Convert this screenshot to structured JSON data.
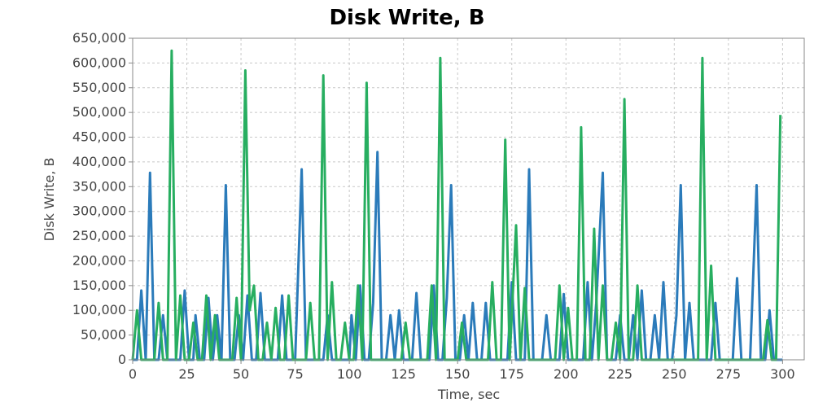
{
  "chart_data": {
    "type": "line",
    "title": "Disk Write, B",
    "xlabel": "Time, sec",
    "ylabel": "Disk Write, B",
    "xlim": [
      0,
      310
    ],
    "ylim": [
      0,
      650000
    ],
    "x_ticks": [
      0,
      25,
      50,
      75,
      100,
      125,
      150,
      175,
      200,
      225,
      250,
      275,
      300
    ],
    "y_ticks": [
      0,
      50000,
      100000,
      150000,
      200000,
      250000,
      300000,
      350000,
      400000,
      450000,
      500000,
      550000,
      600000,
      650000
    ],
    "x_tick_labels": [
      "0",
      "25",
      "50",
      "75",
      "100",
      "125",
      "150",
      "175",
      "200",
      "225",
      "250",
      "275",
      "300"
    ],
    "y_tick_labels": [
      "0",
      "50,000",
      "100,000",
      "150,000",
      "200,000",
      "250,000",
      "300,000",
      "350,000",
      "400,000",
      "450,000",
      "500,000",
      "550,000",
      "600,000",
      "650,000"
    ],
    "grid": true,
    "colors": {
      "series_blue": "#2b7bba",
      "series_green": "#27ae60"
    },
    "series": [
      {
        "color": "#2b7bba",
        "points": [
          [
            0,
            0
          ],
          [
            2,
            0
          ],
          [
            4,
            140000
          ],
          [
            6,
            0
          ],
          [
            8,
            378000
          ],
          [
            10,
            0
          ],
          [
            12,
            0
          ],
          [
            14,
            90000
          ],
          [
            16,
            0
          ],
          [
            18,
            0
          ],
          [
            20,
            0
          ],
          [
            22,
            0
          ],
          [
            24,
            140000
          ],
          [
            26,
            0
          ],
          [
            28,
            0
          ],
          [
            29,
            90000
          ],
          [
            31,
            0
          ],
          [
            33,
            0
          ],
          [
            35,
            125000
          ],
          [
            37,
            0
          ],
          [
            39,
            90000
          ],
          [
            41,
            0
          ],
          [
            43,
            353000
          ],
          [
            45,
            0
          ],
          [
            47,
            0
          ],
          [
            49,
            90000
          ],
          [
            51,
            0
          ],
          [
            53,
            130000
          ],
          [
            55,
            0
          ],
          [
            57,
            0
          ],
          [
            59,
            135000
          ],
          [
            61,
            0
          ],
          [
            63,
            0
          ],
          [
            65,
            0
          ],
          [
            67,
            0
          ],
          [
            69,
            130000
          ],
          [
            71,
            0
          ],
          [
            73,
            0
          ],
          [
            75,
            0
          ],
          [
            78,
            385000
          ],
          [
            80,
            0
          ],
          [
            82,
            0
          ],
          [
            84,
            0
          ],
          [
            86,
            0
          ],
          [
            88,
            0
          ],
          [
            90,
            90000
          ],
          [
            92,
            0
          ],
          [
            94,
            0
          ],
          [
            96,
            0
          ],
          [
            98,
            0
          ],
          [
            100,
            0
          ],
          [
            101,
            90000
          ],
          [
            103,
            0
          ],
          [
            105,
            150000
          ],
          [
            107,
            0
          ],
          [
            109,
            0
          ],
          [
            111,
            115000
          ],
          [
            113,
            420000
          ],
          [
            115,
            0
          ],
          [
            117,
            0
          ],
          [
            119,
            90000
          ],
          [
            121,
            0
          ],
          [
            123,
            100000
          ],
          [
            125,
            0
          ],
          [
            127,
            0
          ],
          [
            129,
            0
          ],
          [
            131,
            135000
          ],
          [
            133,
            0
          ],
          [
            135,
            0
          ],
          [
            137,
            0
          ],
          [
            139,
            150000
          ],
          [
            141,
            0
          ],
          [
            143,
            0
          ],
          [
            145,
            125000
          ],
          [
            147,
            353000
          ],
          [
            149,
            0
          ],
          [
            151,
            0
          ],
          [
            153,
            90000
          ],
          [
            155,
            0
          ],
          [
            157,
            115000
          ],
          [
            159,
            0
          ],
          [
            161,
            0
          ],
          [
            163,
            115000
          ],
          [
            165,
            0
          ],
          [
            167,
            0
          ],
          [
            169,
            0
          ],
          [
            171,
            0
          ],
          [
            173,
            0
          ],
          [
            175,
            157000
          ],
          [
            177,
            0
          ],
          [
            179,
            0
          ],
          [
            181,
            0
          ],
          [
            183,
            385000
          ],
          [
            185,
            0
          ],
          [
            187,
            0
          ],
          [
            189,
            0
          ],
          [
            191,
            90000
          ],
          [
            193,
            0
          ],
          [
            195,
            0
          ],
          [
            197,
            0
          ],
          [
            199,
            133000
          ],
          [
            201,
            0
          ],
          [
            203,
            0
          ],
          [
            205,
            0
          ],
          [
            208,
            0
          ],
          [
            210,
            157000
          ],
          [
            212,
            0
          ],
          [
            214,
            115000
          ],
          [
            217,
            378000
          ],
          [
            219,
            0
          ],
          [
            221,
            0
          ],
          [
            223,
            0
          ],
          [
            225,
            90000
          ],
          [
            227,
            0
          ],
          [
            229,
            0
          ],
          [
            231,
            90000
          ],
          [
            233,
            0
          ],
          [
            235,
            140000
          ],
          [
            237,
            0
          ],
          [
            239,
            0
          ],
          [
            241,
            90000
          ],
          [
            243,
            0
          ],
          [
            245,
            157000
          ],
          [
            247,
            0
          ],
          [
            249,
            0
          ],
          [
            251,
            90000
          ],
          [
            253,
            353000
          ],
          [
            255,
            0
          ],
          [
            257,
            115000
          ],
          [
            259,
            0
          ],
          [
            261,
            0
          ],
          [
            263,
            0
          ],
          [
            265,
            0
          ],
          [
            267,
            0
          ],
          [
            269,
            115000
          ],
          [
            271,
            0
          ],
          [
            273,
            0
          ],
          [
            275,
            0
          ],
          [
            277,
            0
          ],
          [
            279,
            165000
          ],
          [
            281,
            0
          ],
          [
            283,
            0
          ],
          [
            285,
            0
          ],
          [
            288,
            353000
          ],
          [
            290,
            0
          ],
          [
            292,
            0
          ],
          [
            294,
            100000
          ],
          [
            296,
            0
          ],
          [
            298,
            0
          ],
          [
            300,
            0
          ]
        ]
      },
      {
        "color": "#27ae60",
        "points": [
          [
            0,
            0
          ],
          [
            2,
            100000
          ],
          [
            4,
            0
          ],
          [
            6,
            0
          ],
          [
            8,
            0
          ],
          [
            10,
            0
          ],
          [
            12,
            115000
          ],
          [
            14,
            0
          ],
          [
            16,
            0
          ],
          [
            18,
            625000
          ],
          [
            20,
            0
          ],
          [
            22,
            130000
          ],
          [
            24,
            0
          ],
          [
            26,
            0
          ],
          [
            28,
            75000
          ],
          [
            30,
            0
          ],
          [
            32,
            0
          ],
          [
            34,
            130000
          ],
          [
            36,
            0
          ],
          [
            38,
            90000
          ],
          [
            40,
            0
          ],
          [
            42,
            0
          ],
          [
            44,
            0
          ],
          [
            46,
            0
          ],
          [
            48,
            125000
          ],
          [
            50,
            0
          ],
          [
            52,
            585000
          ],
          [
            54,
            100000
          ],
          [
            56,
            150000
          ],
          [
            58,
            0
          ],
          [
            60,
            0
          ],
          [
            62,
            75000
          ],
          [
            64,
            0
          ],
          [
            66,
            105000
          ],
          [
            68,
            0
          ],
          [
            70,
            0
          ],
          [
            72,
            130000
          ],
          [
            74,
            0
          ],
          [
            76,
            0
          ],
          [
            78,
            0
          ],
          [
            80,
            0
          ],
          [
            82,
            115000
          ],
          [
            84,
            0
          ],
          [
            86,
            0
          ],
          [
            88,
            575000
          ],
          [
            90,
            0
          ],
          [
            92,
            157000
          ],
          [
            94,
            0
          ],
          [
            96,
            0
          ],
          [
            98,
            75000
          ],
          [
            100,
            0
          ],
          [
            102,
            0
          ],
          [
            104,
            150000
          ],
          [
            106,
            0
          ],
          [
            108,
            560000
          ],
          [
            110,
            0
          ],
          [
            112,
            0
          ],
          [
            114,
            0
          ],
          [
            116,
            0
          ],
          [
            118,
            0
          ],
          [
            120,
            0
          ],
          [
            122,
            0
          ],
          [
            124,
            0
          ],
          [
            126,
            75000
          ],
          [
            128,
            0
          ],
          [
            130,
            0
          ],
          [
            132,
            0
          ],
          [
            134,
            0
          ],
          [
            136,
            0
          ],
          [
            138,
            150000
          ],
          [
            140,
            0
          ],
          [
            142,
            610000
          ],
          [
            144,
            0
          ],
          [
            146,
            0
          ],
          [
            148,
            0
          ],
          [
            150,
            0
          ],
          [
            152,
            75000
          ],
          [
            154,
            0
          ],
          [
            156,
            0
          ],
          [
            158,
            0
          ],
          [
            160,
            0
          ],
          [
            162,
            0
          ],
          [
            164,
            0
          ],
          [
            166,
            157000
          ],
          [
            168,
            0
          ],
          [
            170,
            0
          ],
          [
            172,
            445000
          ],
          [
            174,
            0
          ],
          [
            177,
            272000
          ],
          [
            179,
            0
          ],
          [
            181,
            145000
          ],
          [
            183,
            0
          ],
          [
            185,
            0
          ],
          [
            187,
            0
          ],
          [
            189,
            0
          ],
          [
            191,
            0
          ],
          [
            193,
            0
          ],
          [
            195,
            0
          ],
          [
            197,
            150000
          ],
          [
            199,
            0
          ],
          [
            201,
            105000
          ],
          [
            203,
            0
          ],
          [
            205,
            0
          ],
          [
            207,
            470000
          ],
          [
            209,
            0
          ],
          [
            211,
            0
          ],
          [
            213,
            265000
          ],
          [
            215,
            0
          ],
          [
            217,
            150000
          ],
          [
            219,
            0
          ],
          [
            221,
            0
          ],
          [
            223,
            75000
          ],
          [
            225,
            0
          ],
          [
            227,
            527000
          ],
          [
            229,
            0
          ],
          [
            231,
            0
          ],
          [
            233,
            150000
          ],
          [
            235,
            0
          ],
          [
            237,
            0
          ],
          [
            239,
            0
          ],
          [
            241,
            0
          ],
          [
            243,
            0
          ],
          [
            245,
            0
          ],
          [
            247,
            0
          ],
          [
            249,
            0
          ],
          [
            251,
            0
          ],
          [
            253,
            0
          ],
          [
            255,
            0
          ],
          [
            257,
            0
          ],
          [
            259,
            0
          ],
          [
            261,
            0
          ],
          [
            263,
            610000
          ],
          [
            265,
            0
          ],
          [
            267,
            190000
          ],
          [
            269,
            0
          ],
          [
            271,
            0
          ],
          [
            273,
            0
          ],
          [
            275,
            0
          ],
          [
            277,
            0
          ],
          [
            279,
            0
          ],
          [
            281,
            0
          ],
          [
            283,
            0
          ],
          [
            285,
            0
          ],
          [
            287,
            0
          ],
          [
            289,
            0
          ],
          [
            291,
            0
          ],
          [
            293,
            80000
          ],
          [
            295,
            0
          ],
          [
            297,
            0
          ],
          [
            299,
            495000
          ]
        ]
      }
    ]
  }
}
